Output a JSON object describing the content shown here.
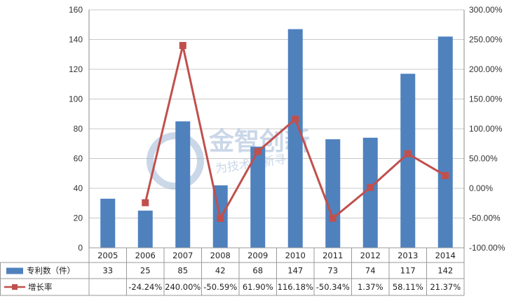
{
  "colors": {
    "bar": "#4f81bd",
    "line": "#c0504d",
    "watermark": "#9fb8d6"
  },
  "watermark": {
    "name": "金智创新",
    "slogan": "为技术创新寻"
  },
  "chart_data": {
    "type": "bar",
    "categories": [
      "2005",
      "2006",
      "2007",
      "2008",
      "2009",
      "2010",
      "2011",
      "2012",
      "2013",
      "2014"
    ],
    "series": [
      {
        "name": "专利数（件）",
        "type": "bar",
        "axis": "left",
        "values": [
          33,
          25,
          85,
          42,
          68,
          147,
          73,
          74,
          117,
          142
        ],
        "labels": [
          "33",
          "25",
          "85",
          "42",
          "68",
          "147",
          "73",
          "74",
          "117",
          "142"
        ]
      },
      {
        "name": "增长率",
        "type": "line",
        "axis": "right",
        "values": [
          null,
          -24.24,
          240.0,
          -50.59,
          61.9,
          116.18,
          -50.34,
          1.37,
          58.11,
          21.37
        ],
        "labels": [
          "",
          "-24.24%",
          "240.00%",
          "-50.59%",
          "61.90%",
          "116.18%",
          "-50.34%",
          "1.37%",
          "58.11%",
          "21.37%"
        ]
      }
    ],
    "y_left": {
      "range": [
        0,
        160
      ],
      "ticks": [
        "0",
        "20",
        "40",
        "60",
        "80",
        "100",
        "120",
        "140",
        "160"
      ]
    },
    "y_right": {
      "range": [
        -100,
        300
      ],
      "ticks": [
        "-100.00%",
        "-50.00%",
        "0.00%",
        "50.00%",
        "100.00%",
        "150.00%",
        "200.00%",
        "250.00%",
        "300.00%"
      ]
    },
    "grid": true,
    "legend": "data-table",
    "title": "",
    "xlabel": "",
    "ylabel": ""
  }
}
